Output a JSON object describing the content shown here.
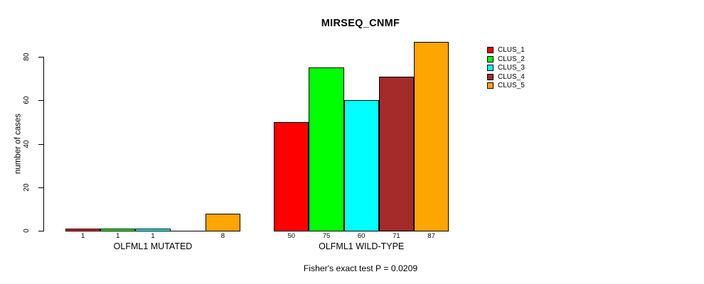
{
  "title": "MIRSEQ_CNMF",
  "annotation": "Fisher's exact test P = 0.0209",
  "ylabel": "number of cases",
  "chart_data": {
    "type": "bar",
    "title": "MIRSEQ_CNMF",
    "xlabel": "",
    "ylabel": "number of cases",
    "ylim": [
      0,
      87
    ],
    "yticks": [
      0,
      20,
      40,
      60,
      80
    ],
    "grid": false,
    "legend_position": "right",
    "annotation": "Fisher's exact test P = 0.0209",
    "series_labels": [
      "CLUS_1",
      "CLUS_2",
      "CLUS_3",
      "CLUS_4",
      "CLUS_5"
    ],
    "colors": [
      "#FF0000",
      "#00FF00",
      "#00FFFF",
      "#A52A2A",
      "#FFA500"
    ],
    "groups": [
      {
        "label": "OLFML1 MUTATED",
        "values": [
          1,
          1,
          1,
          0,
          8
        ]
      },
      {
        "label": "OLFML1 WILD-TYPE",
        "values": [
          50,
          75,
          60,
          71,
          87
        ]
      }
    ]
  }
}
